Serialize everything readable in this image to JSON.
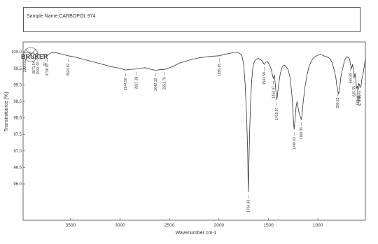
{
  "header": {
    "sample_name": "Sample Name:CARBOPOL 974",
    "top_note": "~ ~ ~"
  },
  "logo_text": "BRUKER",
  "chart_data": {
    "type": "line",
    "title": "",
    "xlabel": "Wavenumber cm-1",
    "ylabel": "Transmittance [%]",
    "xlim": [
      3980,
      520
    ],
    "ylim": [
      94.9,
      100.3
    ],
    "x_reversed": true,
    "x_ticks": [
      3500,
      3000,
      2500,
      2000,
      1500,
      1000
    ],
    "y_ticks": [
      96.0,
      96.5,
      97.0,
      97.5,
      98.0,
      98.5,
      99.0,
      99.5,
      100.0
    ],
    "y_tick_labels": [
      "96.0",
      "96.5",
      "97.0",
      "97.5",
      "98.0",
      "98.5",
      "99.0",
      "99.5",
      "100.0"
    ],
    "line_color": "#333333",
    "series": [
      {
        "x": [
          3980,
          3950,
          3920,
          3900,
          3880,
          3860,
          3840,
          3820,
          3800,
          3780,
          3760,
          3740,
          3720,
          3700,
          3650,
          3600,
          3550,
          3524.82,
          3500,
          3450,
          3400,
          3350,
          3300,
          3250,
          3200,
          3150,
          3100,
          3050,
          3000,
          2944.58,
          2900,
          2837.38,
          2800,
          2750,
          2700,
          2642.12,
          2600,
          2551.79,
          2500,
          2450,
          2400,
          2300,
          2200,
          2100,
          2000,
          1995.85,
          1950,
          1900,
          1850,
          1800,
          1770,
          1750,
          1735,
          1720,
          1710,
          1704.33,
          1698,
          1690,
          1680,
          1670,
          1660,
          1650,
          1640,
          1620,
          1600,
          1580,
          1560,
          1543.58,
          1530,
          1510,
          1490,
          1470,
          1460,
          1450.47,
          1440,
          1430,
          1420,
          1415.97,
          1410,
          1400,
          1380,
          1360,
          1340,
          1320,
          1300,
          1280,
          1260,
          1250,
          1240.63,
          1230,
          1220,
          1210,
          1200,
          1190,
          1180,
          1168.36,
          1160,
          1150,
          1130,
          1110,
          1090,
          1070,
          1050,
          1030,
          1000,
          970,
          940,
          910,
          880,
          860,
          840,
          820,
          810,
          800.63,
          790,
          780,
          770,
          750,
          730,
          710,
          690,
          680,
          669.69,
          660,
          650,
          640,
          635.55,
          625,
          615,
          610,
          601.37,
          595,
          590,
          589.21,
          585,
          580,
          574.45,
          565,
          555,
          545,
          535,
          525,
          520
        ],
        "y": [
          100.0,
          99.98,
          100.0,
          99.95,
          99.97,
          99.92,
          99.95,
          99.9,
          99.93,
          99.9,
          99.92,
          99.88,
          99.92,
          99.97,
          99.98,
          99.94,
          99.9,
          99.88,
          99.87,
          99.84,
          99.8,
          99.76,
          99.72,
          99.68,
          99.64,
          99.6,
          99.56,
          99.53,
          99.5,
          99.45,
          99.47,
          99.48,
          99.5,
          99.52,
          99.48,
          99.44,
          99.46,
          99.47,
          99.52,
          99.58,
          99.66,
          99.75,
          99.82,
          99.86,
          99.88,
          99.88,
          99.92,
          99.95,
          99.98,
          99.98,
          99.9,
          99.6,
          99.0,
          98.0,
          97.0,
          95.75,
          96.5,
          97.6,
          98.5,
          99.1,
          99.45,
          99.65,
          99.72,
          99.78,
          99.8,
          99.76,
          99.72,
          99.62,
          99.68,
          99.7,
          99.62,
          99.45,
          99.3,
          99.2,
          99.3,
          99.0,
          98.65,
          98.55,
          98.65,
          98.95,
          99.35,
          99.55,
          99.6,
          99.55,
          99.45,
          99.2,
          98.6,
          98.05,
          97.65,
          98.0,
          98.35,
          98.5,
          98.3,
          98.15,
          98.05,
          97.95,
          98.1,
          98.45,
          98.95,
          99.3,
          99.55,
          99.7,
          99.8,
          99.85,
          99.9,
          99.92,
          99.88,
          99.85,
          99.8,
          99.7,
          99.5,
          99.25,
          99.0,
          98.85,
          98.72,
          98.9,
          99.2,
          99.5,
          99.75,
          99.85,
          99.82,
          99.78,
          99.6,
          99.5,
          99.62,
          99.4,
          99.2,
          99.35,
          99.1,
          98.9,
          98.95,
          98.85,
          99.0,
          99.05,
          99.0,
          99.02,
          98.92,
          98.95,
          99.2,
          99.3,
          99.5,
          99.7,
          99.8
        ]
      }
    ],
    "peak_labels": [
      {
        "x": 3990.0,
        "label": "3990.59"
      },
      {
        "x": 3871.0,
        "label": "3871.54"
      },
      {
        "x": 3832.4,
        "label": "3832.40"
      },
      {
        "x": 3760.0,
        "label": "37"
      },
      {
        "x": 3736.93,
        "label": "3736.93"
      },
      {
        "x": 3524.82,
        "label": "3524.82"
      },
      {
        "x": 2944.58,
        "label": "2944.58"
      },
      {
        "x": 2837.38,
        "label": "2837.38"
      },
      {
        "x": 2642.12,
        "label": "2642.12"
      },
      {
        "x": 2551.79,
        "label": "2551.79"
      },
      {
        "x": 1995.85,
        "label": "1995.85"
      },
      {
        "x": 1704.33,
        "label": "1704.33"
      },
      {
        "x": 1543.58,
        "label": "1543.58"
      },
      {
        "x": 1450.47,
        "label": "1450.47"
      },
      {
        "x": 1415.97,
        "label": "1415.97"
      },
      {
        "x": 1240.63,
        "label": "1240.63"
      },
      {
        "x": 1168.36,
        "label": "1168.36"
      },
      {
        "x": 800.63,
        "label": "800.63"
      },
      {
        "x": 669.69,
        "label": "669.69"
      },
      {
        "x": 635.55,
        "label": "635.55"
      },
      {
        "x": 601.37,
        "label": "601.37"
      },
      {
        "x": 589.21,
        "label": "589.21"
      },
      {
        "x": 574.45,
        "label": "574.45"
      }
    ]
  }
}
